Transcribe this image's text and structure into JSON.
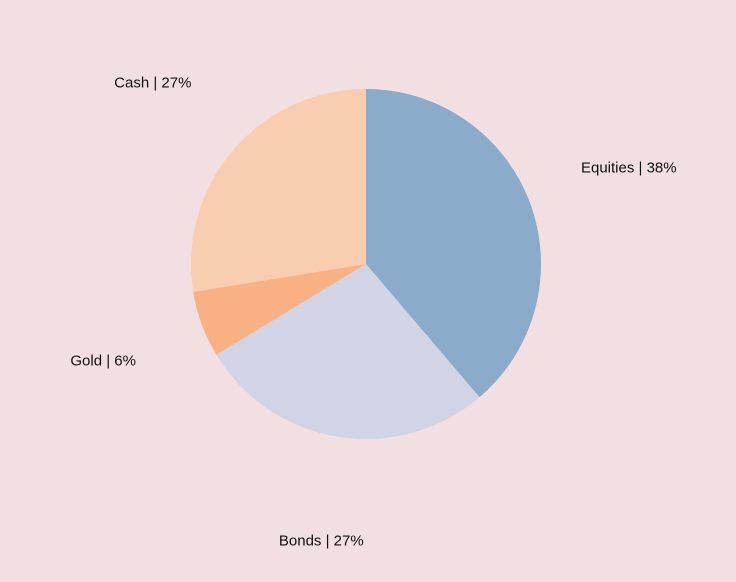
{
  "background_color": "#f2dfe1",
  "chart_data": {
    "type": "pie",
    "slices": [
      {
        "label": "Equities",
        "value": 38,
        "display": "Equities | 38%",
        "color": "#8aabca"
      },
      {
        "label": "Bonds",
        "value": 27,
        "display": "Bonds | 27%",
        "color": "#d1d4e5"
      },
      {
        "label": "Gold",
        "value": 6,
        "display": "Gold | 6%",
        "color": "#f9b083"
      },
      {
        "label": "Cash",
        "value": 27,
        "display": "Cash | 27%",
        "color": "#f8cdb0"
      }
    ],
    "start_angle": "12 o'clock",
    "direction": "clockwise",
    "legend": "none"
  }
}
